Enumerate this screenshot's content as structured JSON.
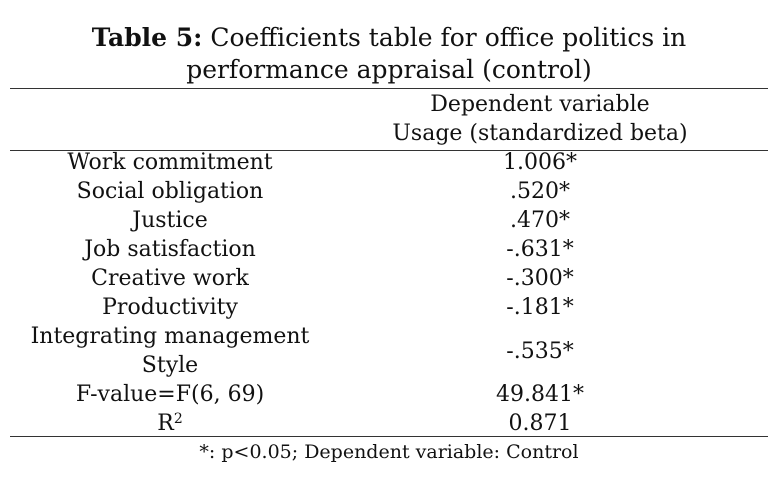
{
  "caption": {
    "label": "Table 5:",
    "line1": "Coefficients table for office politics in",
    "line2": "performance appraisal (control)"
  },
  "header": {
    "line1": "Dependent variable",
    "line2": "Usage (standardized beta)"
  },
  "rows": [
    {
      "label": "Work commitment",
      "value": "1.006*"
    },
    {
      "label": "Social obligation",
      "value": ".520*"
    },
    {
      "label": "Justice",
      "value": ".470*"
    },
    {
      "label": "Job satisfaction",
      "value": "-.631*"
    },
    {
      "label": "Creative work",
      "value": "-.300*"
    },
    {
      "label": "Productivity",
      "value": "-.181*"
    },
    {
      "label_line1": "Integrating management",
      "label_line2": "Style",
      "value": "-.535*"
    },
    {
      "label": "F-value=F(6, 69)",
      "value": "49.841*"
    },
    {
      "label_base": "R",
      "label_sup": "2",
      "value": "0.871"
    }
  ],
  "footnote": "*: p<0.05; Dependent variable: Control"
}
